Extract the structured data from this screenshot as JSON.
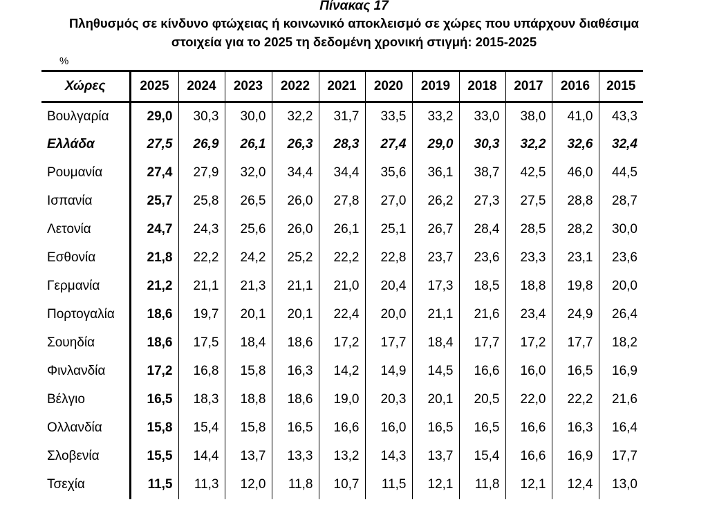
{
  "caption": "Πίνακας 17",
  "title_line1": "Πληθυσμός σε κίνδυνο φτώχειας ή κοινωνικό αποκλεισμό σε χώρες που υπάρχουν διαθέσιμα",
  "title_line2": "στοιχεία για το 2025 τη δεδομένη χρονική στιγμή: 2015-2025",
  "unit": "%",
  "table": {
    "country_header": "Χώρες",
    "years": [
      "2025",
      "2024",
      "2023",
      "2022",
      "2021",
      "2020",
      "2019",
      "2018",
      "2017",
      "2016",
      "2015"
    ],
    "rows": [
      {
        "country": "Βουλγαρία",
        "values": [
          "29,0",
          "30,3",
          "30,0",
          "32,2",
          "31,7",
          "33,5",
          "33,2",
          "33,0",
          "38,0",
          "41,0",
          "43,3"
        ],
        "highlight": false
      },
      {
        "country": "Ελλάδα",
        "values": [
          "27,5",
          "26,9",
          "26,1",
          "26,3",
          "28,3",
          "27,4",
          "29,0",
          "30,3",
          "32,2",
          "32,6",
          "32,4"
        ],
        "highlight": true
      },
      {
        "country": "Ρουμανία",
        "values": [
          "27,4",
          "27,9",
          "32,0",
          "34,4",
          "34,4",
          "35,6",
          "36,1",
          "38,7",
          "42,5",
          "46,0",
          "44,5"
        ],
        "highlight": false
      },
      {
        "country": "Ισπανία",
        "values": [
          "25,7",
          "25,8",
          "26,5",
          "26,0",
          "27,8",
          "27,0",
          "26,2",
          "27,3",
          "27,5",
          "28,8",
          "28,7"
        ],
        "highlight": false
      },
      {
        "country": "Λετονία",
        "values": [
          "24,7",
          "24,3",
          "25,6",
          "26,0",
          "26,1",
          "25,1",
          "26,7",
          "28,4",
          "28,5",
          "28,2",
          "30,0"
        ],
        "highlight": false
      },
      {
        "country": "Εσθονία",
        "values": [
          "21,8",
          "22,2",
          "24,2",
          "25,2",
          "22,2",
          "22,8",
          "23,7",
          "23,6",
          "23,3",
          "23,1",
          "23,6"
        ],
        "highlight": false
      },
      {
        "country": "Γερμανία",
        "values": [
          "21,2",
          "21,1",
          "21,3",
          "21,1",
          "21,0",
          "20,4",
          "17,3",
          "18,5",
          "18,8",
          "19,8",
          "20,0"
        ],
        "highlight": false
      },
      {
        "country": "Πορτογαλία",
        "values": [
          "18,6",
          "19,7",
          "20,1",
          "20,1",
          "22,4",
          "20,0",
          "21,1",
          "21,6",
          "23,4",
          "24,9",
          "26,4"
        ],
        "highlight": false
      },
      {
        "country": "Σουηδία",
        "values": [
          "18,6",
          "17,5",
          "18,4",
          "18,6",
          "17,2",
          "17,7",
          "18,4",
          "17,7",
          "17,2",
          "17,7",
          "18,2"
        ],
        "highlight": false
      },
      {
        "country": "Φινλανδία",
        "values": [
          "17,2",
          "16,8",
          "15,8",
          "16,3",
          "14,2",
          "14,9",
          "14,5",
          "16,6",
          "16,0",
          "16,5",
          "16,9"
        ],
        "highlight": false
      },
      {
        "country": "Βέλγιο",
        "values": [
          "16,5",
          "18,3",
          "18,8",
          "18,6",
          "19,0",
          "20,3",
          "20,1",
          "20,5",
          "22,0",
          "22,2",
          "21,6"
        ],
        "highlight": false
      },
      {
        "country": "Ολλανδία",
        "values": [
          "15,8",
          "15,4",
          "15,8",
          "16,5",
          "16,6",
          "16,0",
          "16,5",
          "16,5",
          "16,6",
          "16,3",
          "16,4"
        ],
        "highlight": false
      },
      {
        "country": "Σλοβενία",
        "values": [
          "15,5",
          "14,4",
          "13,7",
          "13,3",
          "13,2",
          "14,3",
          "13,7",
          "15,4",
          "16,6",
          "16,9",
          "17,7"
        ],
        "highlight": false
      },
      {
        "country": "Τσεχία",
        "values": [
          "11,5",
          "11,3",
          "12,0",
          "11,8",
          "10,7",
          "11,5",
          "12,1",
          "11,8",
          "12,1",
          "12,4",
          "13,0"
        ],
        "highlight": false
      }
    ]
  }
}
